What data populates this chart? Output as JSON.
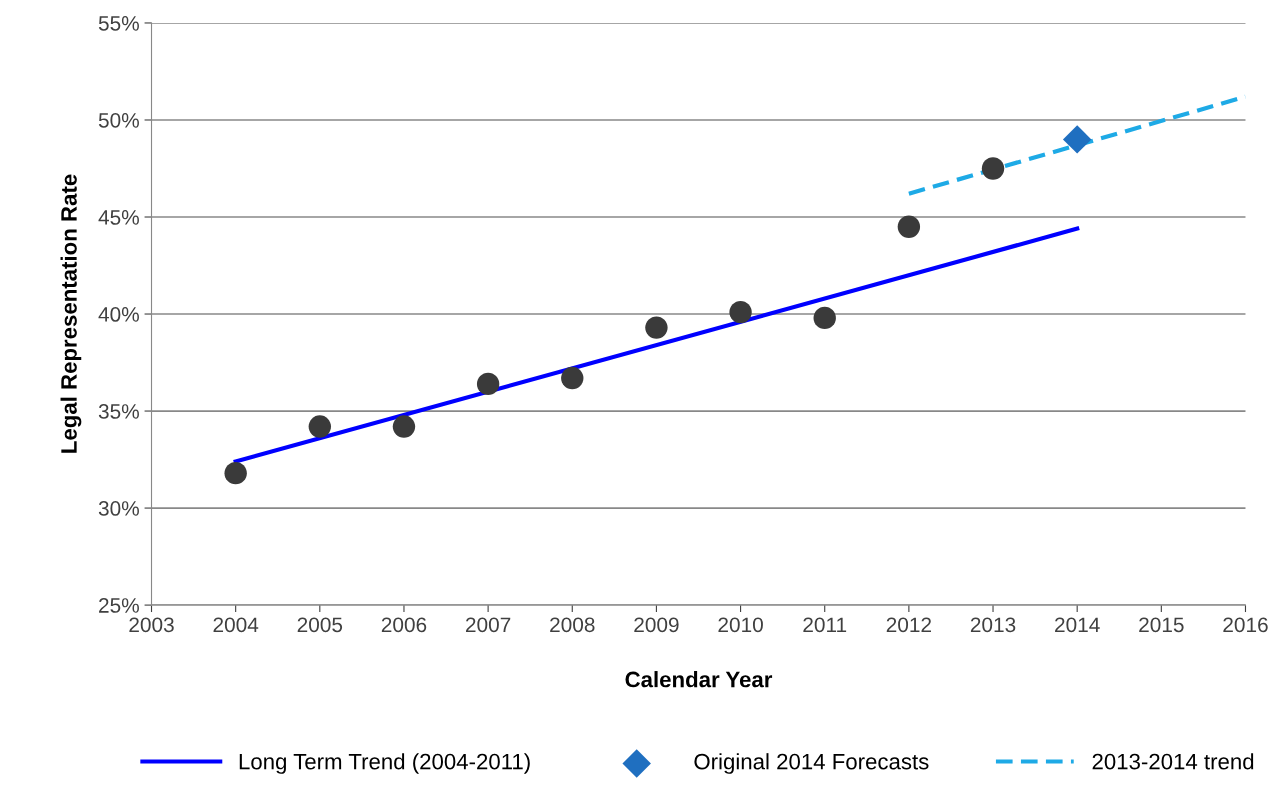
{
  "chart_data": {
    "type": "scatter",
    "xlabel": "Calendar Year",
    "ylabel": "Legal Representation Rate",
    "xlim": [
      2003,
      2016
    ],
    "xticks": [
      2003,
      2004,
      2005,
      2006,
      2007,
      2008,
      2009,
      2010,
      2011,
      2012,
      2013,
      2014,
      2015,
      2016
    ],
    "ylim": [
      25,
      55
    ],
    "yticks": [
      {
        "value": 25,
        "label": "25%"
      },
      {
        "value": 30,
        "label": "30%"
      },
      {
        "value": 35,
        "label": "35%"
      },
      {
        "value": 40,
        "label": "40%"
      },
      {
        "value": 45,
        "label": "45%"
      },
      {
        "value": 50,
        "label": "50%"
      },
      {
        "value": 55,
        "label": "55%"
      }
    ],
    "grid": "y",
    "legend": "bottom",
    "series": [
      {
        "type": "line",
        "name": "Long Term Trend (2004-2011)",
        "color": "#0000ff",
        "line_style": "solid",
        "marker": "none",
        "x": [
          2004,
          2014
        ],
        "values": [
          32.4,
          44.4
        ]
      },
      {
        "name": "Original 2014 Forecasts",
        "color": "#1f6fc0",
        "marker": "diamond",
        "x": [
          2014
        ],
        "values": [
          49.0
        ]
      },
      {
        "type": "line",
        "name": "2013-2014 trend",
        "color": "#1eaae6",
        "line_style": "dashed",
        "marker": "none",
        "x": [
          2012,
          2016
        ],
        "values": [
          46.2,
          51.2
        ]
      },
      {
        "color": "#3a3a3a",
        "marker": "circle",
        "x": [
          2004,
          2005,
          2006,
          2007,
          2008,
          2009,
          2010,
          2011,
          2012,
          2013
        ],
        "values": [
          31.8,
          34.2,
          34.2,
          36.4,
          36.7,
          39.3,
          40.1,
          39.8,
          44.5,
          47.5
        ]
      }
    ]
  }
}
